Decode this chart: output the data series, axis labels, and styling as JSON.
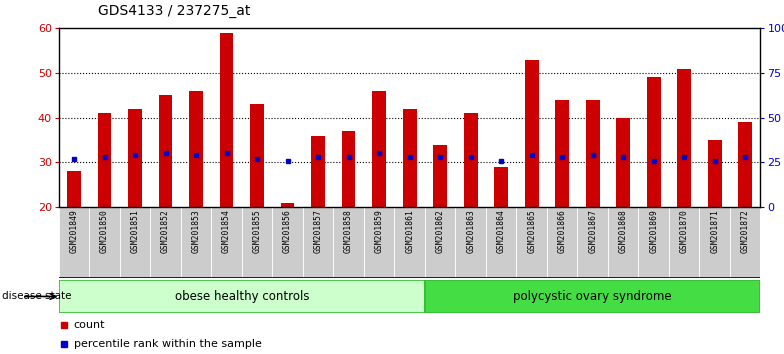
{
  "title": "GDS4133 / 237275_at",
  "samples": [
    "GSM201849",
    "GSM201850",
    "GSM201851",
    "GSM201852",
    "GSM201853",
    "GSM201854",
    "GSM201855",
    "GSM201856",
    "GSM201857",
    "GSM201858",
    "GSM201859",
    "GSM201861",
    "GSM201862",
    "GSM201863",
    "GSM201864",
    "GSM201865",
    "GSM201866",
    "GSM201867",
    "GSM201868",
    "GSM201869",
    "GSM201870",
    "GSM201871",
    "GSM201872"
  ],
  "counts": [
    28,
    41,
    42,
    45,
    46,
    59,
    43,
    21,
    36,
    37,
    46,
    42,
    34,
    41,
    29,
    53,
    44,
    44,
    40,
    49,
    51,
    35,
    39
  ],
  "percentiles": [
    27,
    28,
    29,
    30,
    29,
    30,
    27,
    26,
    28,
    28,
    30,
    28,
    28,
    28,
    26,
    29,
    28,
    29,
    28,
    26,
    28,
    26,
    28
  ],
  "group1_label": "obese healthy controls",
  "group1_count": 12,
  "group2_label": "polycystic ovary syndrome",
  "group2_count": 11,
  "disease_state_label": "disease state",
  "bar_color": "#cc0000",
  "marker_color": "#0000cc",
  "ylim_left": [
    20,
    60
  ],
  "ylim_right": [
    0,
    100
  ],
  "yticks_left": [
    20,
    30,
    40,
    50,
    60
  ],
  "yticks_right": [
    0,
    25,
    50,
    75,
    100
  ],
  "ytick_labels_right": [
    "0",
    "25",
    "50",
    "75",
    "100%"
  ],
  "legend_count_label": "count",
  "legend_pct_label": "percentile rank within the sample",
  "group1_bg": "#ccffcc",
  "group2_bg": "#44dd44",
  "xticklabel_bg": "#cccccc",
  "grid_yticks": [
    30,
    40,
    50
  ]
}
